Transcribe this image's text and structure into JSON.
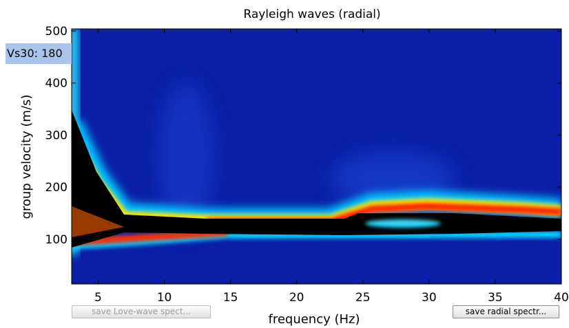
{
  "chart_data": {
    "type": "spectrogram",
    "title": "Rayleigh waves (radial)",
    "x_label": "frequency (Hz)",
    "y_label": "group velocity (m/s)",
    "xlim": [
      3,
      40
    ],
    "xticks": [
      5,
      10,
      15,
      20,
      25,
      30,
      35,
      40
    ],
    "ylim": [
      14,
      504
    ],
    "yticks": [
      100,
      200,
      300,
      400,
      500
    ]
  },
  "controls": {
    "vs30_label": "Vs30: 180",
    "buttons": [
      {
        "label": "save Love-wave spect...",
        "enabled": false
      },
      {
        "label": "save radial spectr...",
        "enabled": true
      }
    ]
  }
}
